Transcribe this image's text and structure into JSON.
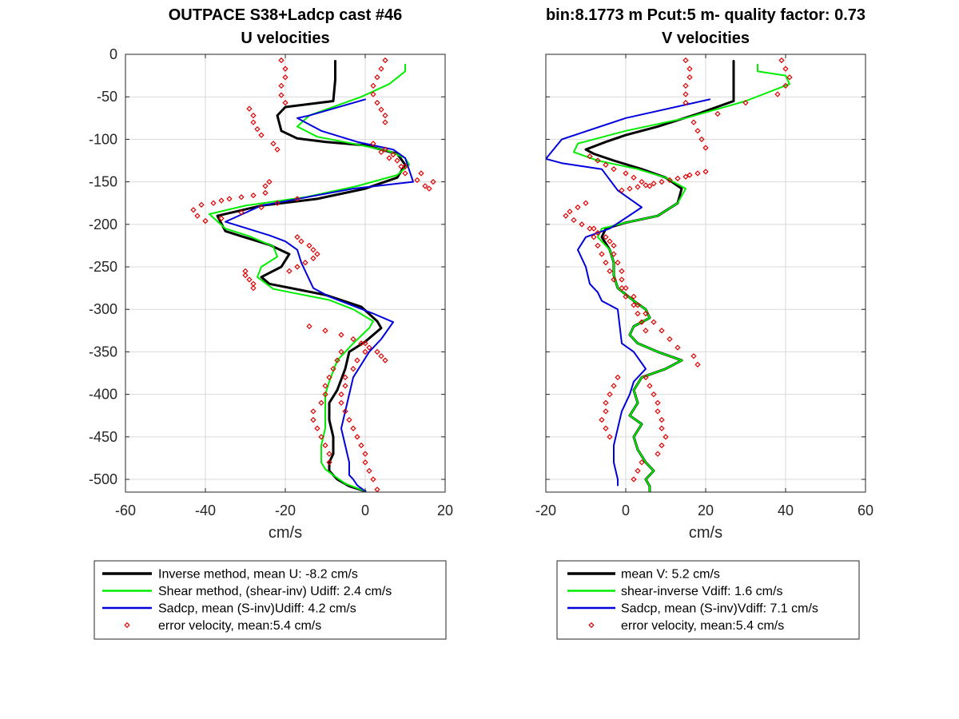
{
  "colors": {
    "inverse": "#000000",
    "shear": "#00ee00",
    "sadcp": "#0000dd",
    "error": "#dd0000",
    "grid": "#d9d9d9",
    "axis": "#262626"
  },
  "chart_data": [
    {
      "type": "line",
      "title": "OUTPACE S38+Ladcp cast #46",
      "subtitle": "U velocities",
      "xlabel": "cm/s",
      "ylabel": "",
      "xlim": [
        -60,
        20
      ],
      "ylim": [
        -515,
        0
      ],
      "xticks": [
        -60,
        -40,
        -20,
        0,
        20
      ],
      "yticks": [
        0,
        -50,
        -100,
        -150,
        -200,
        -250,
        -300,
        -350,
        -400,
        -450,
        -500
      ],
      "grid": true,
      "legend_placement": "below",
      "legend": [
        "Inverse method, mean U:  -8.2 cm/s",
        "Shear method, (shear-inv)  Udiff:  2.4 cm/s",
        "Sadcp, mean (S-inv)Udiff: 4.2 cm/s",
        "error velocity, mean:5.4 cm/s"
      ],
      "series": [
        {
          "name": "Inverse method, mean U:  -8.2 cm/s",
          "style": "inverse",
          "x": [
            -7.5,
            -7.5,
            -8,
            -20,
            -22,
            -21,
            -17,
            -10,
            0,
            8,
            10,
            8,
            0,
            -12,
            -26,
            -37,
            -35,
            -31,
            -24,
            -19,
            -21,
            -26,
            -24,
            -10,
            -1,
            3,
            4,
            0,
            -4,
            -5,
            -7,
            -9,
            -9,
            -8,
            -8,
            -9,
            -9,
            -7,
            -4,
            0
          ],
          "y": [
            -8,
            -30,
            -55,
            -62,
            -72,
            -90,
            -99,
            -103,
            -107,
            -117,
            -130,
            -145,
            -158,
            -170,
            -178,
            -190,
            -208,
            -214,
            -224,
            -235,
            -250,
            -262,
            -270,
            -283,
            -297,
            -314,
            -322,
            -338,
            -350,
            -370,
            -395,
            -410,
            -430,
            -450,
            -470,
            -480,
            -490,
            -500,
            -508,
            -514
          ]
        },
        {
          "name": "Shear method, (shear-inv)  Udiff:  2.4 cm/s",
          "style": "shear",
          "x": [
            10,
            10,
            6,
            -1,
            -14,
            -17,
            -12,
            -2,
            6,
            10,
            11,
            8,
            -2,
            -15,
            -30,
            -39,
            -35,
            -29,
            -23,
            -22,
            -26,
            -27,
            -23,
            -9,
            -3,
            2,
            1,
            -3,
            -7,
            -9,
            -10,
            -10,
            -10,
            -11,
            -11,
            -10,
            -8,
            -5,
            0
          ],
          "y": [
            -12,
            -20,
            -35,
            -50,
            -72,
            -85,
            -97,
            -106,
            -114,
            -122,
            -130,
            -142,
            -155,
            -168,
            -178,
            -188,
            -205,
            -214,
            -226,
            -238,
            -250,
            -262,
            -276,
            -289,
            -300,
            -314,
            -322,
            -340,
            -360,
            -385,
            -400,
            -420,
            -440,
            -460,
            -480,
            -488,
            -495,
            -505,
            -514
          ]
        },
        {
          "name": "Sadcp, mean (S-inv)Udiff: 4.2 cm/s",
          "style": "sadcp",
          "x": [
            0,
            -14,
            -17,
            -11,
            -2,
            7,
            10,
            12,
            -3,
            -26,
            -35,
            -24,
            -20,
            -17,
            -16,
            -13,
            -9,
            2,
            7,
            4,
            1,
            -1,
            -3,
            -4,
            -5,
            -6,
            -5,
            -4,
            -4,
            -3,
            -2,
            0
          ],
          "y": [
            -53,
            -72,
            -75,
            -90,
            -103,
            -112,
            -122,
            -150,
            -158,
            -178,
            -197,
            -213,
            -220,
            -230,
            -245,
            -275,
            -285,
            -305,
            -315,
            -335,
            -350,
            -365,
            -380,
            -400,
            -420,
            -440,
            -460,
            -480,
            -495,
            -500,
            -507,
            -514
          ]
        },
        {
          "name": "error velocity, mean:5.4 cm/s",
          "style": "error",
          "x": [
            -21,
            -20,
            -20,
            -21,
            -21,
            -20,
            5,
            4,
            3,
            2,
            2,
            3,
            4,
            5,
            5,
            -29,
            -28,
            -28,
            -27,
            -26,
            -23,
            -22,
            2,
            5,
            7,
            8,
            9,
            10,
            13,
            15,
            16,
            17,
            14,
            10,
            6,
            4,
            -17,
            -22,
            -26,
            -31,
            -36,
            -40,
            -42,
            -43,
            -41,
            -38,
            -36,
            -34,
            -31,
            -28,
            -25,
            -25,
            -24,
            -30,
            -30,
            -29,
            -28,
            -28,
            -17,
            -16,
            -14,
            -13,
            -12,
            -13,
            -15,
            -17,
            -19,
            -14,
            -10,
            -6,
            -3,
            -1,
            1,
            3,
            4,
            5,
            -6,
            -7,
            -8,
            -9,
            -10,
            -10,
            -11,
            -13,
            -13,
            -12,
            -11,
            -10,
            -9,
            -9,
            0,
            0,
            -2,
            -3,
            -5,
            -5,
            -6,
            -6,
            -5,
            -4,
            -3,
            -2,
            -1,
            0,
            0,
            1,
            2,
            3
          ],
          "y": [
            -7,
            -17,
            -27,
            -37,
            -48,
            -57,
            -7,
            -17,
            -27,
            -37,
            -47,
            -57,
            -65,
            -72,
            -80,
            -64,
            -72,
            -80,
            -88,
            -95,
            -105,
            -112,
            -105,
            -112,
            -118,
            -125,
            -132,
            -140,
            -148,
            -155,
            -158,
            -150,
            -140,
            -132,
            -122,
            -115,
            -170,
            -175,
            -180,
            -186,
            -193,
            -196,
            -190,
            -183,
            -177,
            -175,
            -172,
            -170,
            -168,
            -166,
            -163,
            -155,
            -150,
            -255,
            -260,
            -265,
            -270,
            -275,
            -215,
            -220,
            -225,
            -230,
            -235,
            -240,
            -245,
            -250,
            -255,
            -320,
            -325,
            -330,
            -335,
            -340,
            -345,
            -350,
            -355,
            -360,
            -350,
            -360,
            -370,
            -380,
            -390,
            -400,
            -410,
            -420,
            -430,
            -440,
            -450,
            -460,
            -470,
            -480,
            -340,
            -350,
            -360,
            -370,
            -380,
            -390,
            -400,
            -410,
            -420,
            -430,
            -440,
            -450,
            -460,
            -470,
            -480,
            -490,
            -500,
            -512
          ]
        }
      ]
    },
    {
      "type": "line",
      "title": "bin:8.1773 m  Pcut:5 m- quality factor:  0.73",
      "subtitle": "V velocities",
      "xlabel": "cm/s",
      "ylabel": "",
      "xlim": [
        -20,
        60
      ],
      "ylim": [
        -515,
        0
      ],
      "xticks": [
        -20,
        0,
        20,
        40,
        60
      ],
      "yticks": [
        0,
        -50,
        -100,
        -150,
        -200,
        -250,
        -300,
        -350,
        -400,
        -450,
        -500
      ],
      "grid": true,
      "legend_placement": "below",
      "legend": [
        "mean V:  5.2 cm/s",
        "shear-inverse Vdiff:  1.6 cm/s",
        "Sadcp, mean (S-inv)Vdiff: 7.1 cm/s",
        "error velocity, mean:5.4 cm/s"
      ],
      "series": [
        {
          "name": "mean V:  5.2 cm/s",
          "style": "inverse",
          "x": [
            27,
            27,
            27,
            18,
            8,
            0,
            -5,
            -10,
            -8,
            -3,
            4,
            10,
            14,
            13,
            8,
            0,
            -5,
            -6,
            -4,
            -3,
            -3,
            -2,
            2,
            5,
            6,
            2,
            1,
            3,
            8,
            14,
            10,
            4,
            2,
            3,
            1,
            4,
            2,
            3,
            5,
            7,
            5,
            6,
            6
          ],
          "y": [
            -8,
            -30,
            -55,
            -70,
            -85,
            -95,
            -103,
            -112,
            -117,
            -125,
            -135,
            -145,
            -158,
            -175,
            -190,
            -198,
            -205,
            -215,
            -230,
            -245,
            -260,
            -275,
            -290,
            -300,
            -310,
            -320,
            -330,
            -340,
            -350,
            -360,
            -370,
            -380,
            -395,
            -410,
            -425,
            -435,
            -450,
            -465,
            -480,
            -490,
            -500,
            -508,
            -514
          ]
        },
        {
          "name": "shear-inverse Vdiff:  1.6 cm/s",
          "style": "shear",
          "x": [
            33,
            33,
            40,
            41,
            30,
            15,
            0,
            -12,
            -13,
            -7,
            3,
            10,
            15,
            13,
            8,
            0,
            -6,
            -7,
            -4,
            -3,
            -3,
            -2,
            2,
            5,
            6,
            2,
            1,
            3,
            8,
            14,
            10,
            4,
            2,
            3,
            1,
            4,
            2,
            3,
            5,
            7,
            5,
            6,
            6
          ],
          "y": [
            -12,
            -20,
            -25,
            -35,
            -55,
            -75,
            -90,
            -105,
            -115,
            -125,
            -135,
            -145,
            -158,
            -175,
            -190,
            -198,
            -205,
            -215,
            -230,
            -245,
            -260,
            -275,
            -290,
            -300,
            -310,
            -320,
            -330,
            -340,
            -350,
            -360,
            -370,
            -380,
            -395,
            -410,
            -425,
            -435,
            -450,
            -465,
            -480,
            -490,
            -500,
            -508,
            -514
          ]
        },
        {
          "name": "Sadcp, mean (S-inv)Vdiff: 7.1 cm/s",
          "style": "sadcp",
          "x": [
            21,
            0,
            -16,
            -20,
            -16,
            -6,
            -2,
            4,
            -4,
            -10,
            -12,
            -10,
            -9,
            -7,
            -6,
            -2,
            -1,
            2,
            5,
            2,
            1,
            -1,
            -2,
            -3,
            -3,
            -2,
            -2
          ],
          "y": [
            -53,
            -75,
            -100,
            -123,
            -128,
            -135,
            -160,
            -180,
            -205,
            -215,
            -230,
            -250,
            -270,
            -280,
            -290,
            -300,
            -340,
            -350,
            -370,
            -385,
            -400,
            -420,
            -440,
            -460,
            -480,
            -500,
            -507
          ]
        },
        {
          "name": "error velocity, mean:5.4 cm/s",
          "style": "error",
          "x": [
            15,
            16,
            16,
            15,
            15,
            15,
            39,
            40,
            41,
            40,
            38,
            30,
            23,
            17,
            18,
            19,
            20,
            -9,
            -7,
            -5,
            -3,
            0,
            2,
            4,
            6,
            -1,
            1,
            3,
            5,
            7,
            9,
            11,
            13,
            15,
            16,
            18,
            20,
            -8,
            -8,
            -7,
            -6,
            -5,
            -4,
            -3,
            -1,
            0,
            2,
            3,
            4,
            5,
            -10,
            -12,
            -14,
            -15,
            -13,
            -11,
            -9,
            -7,
            -5,
            -4,
            -3,
            -3,
            -2,
            -1,
            -1,
            0,
            2,
            3,
            5,
            7,
            9,
            11,
            13,
            17,
            18,
            -2,
            -3,
            -4,
            -5,
            -5,
            -6,
            -5,
            -4,
            5,
            6,
            7,
            8,
            8,
            9,
            9,
            10,
            9,
            8,
            4,
            3,
            2
          ],
          "y": [
            -7,
            -17,
            -27,
            -37,
            -47,
            -57,
            -7,
            -17,
            -27,
            -37,
            -47,
            -57,
            -70,
            -80,
            -90,
            -100,
            -110,
            -120,
            -125,
            -130,
            -135,
            -140,
            -145,
            -150,
            -155,
            -160,
            -158,
            -156,
            -154,
            -152,
            -150,
            -148,
            -146,
            -144,
            -142,
            -140,
            -138,
            -205,
            -215,
            -225,
            -235,
            -245,
            -255,
            -265,
            -275,
            -285,
            -295,
            -305,
            -315,
            -325,
            -175,
            -180,
            -185,
            -190,
            -195,
            -200,
            -205,
            -210,
            -215,
            -220,
            -225,
            -235,
            -245,
            -255,
            -265,
            -275,
            -285,
            -295,
            -305,
            -315,
            -325,
            -335,
            -345,
            -355,
            -365,
            -380,
            -390,
            -400,
            -410,
            -420,
            -430,
            -440,
            -450,
            -380,
            -390,
            -400,
            -410,
            -420,
            -430,
            -440,
            -450,
            -460,
            -470,
            -480,
            -490,
            -500
          ]
        }
      ]
    }
  ]
}
